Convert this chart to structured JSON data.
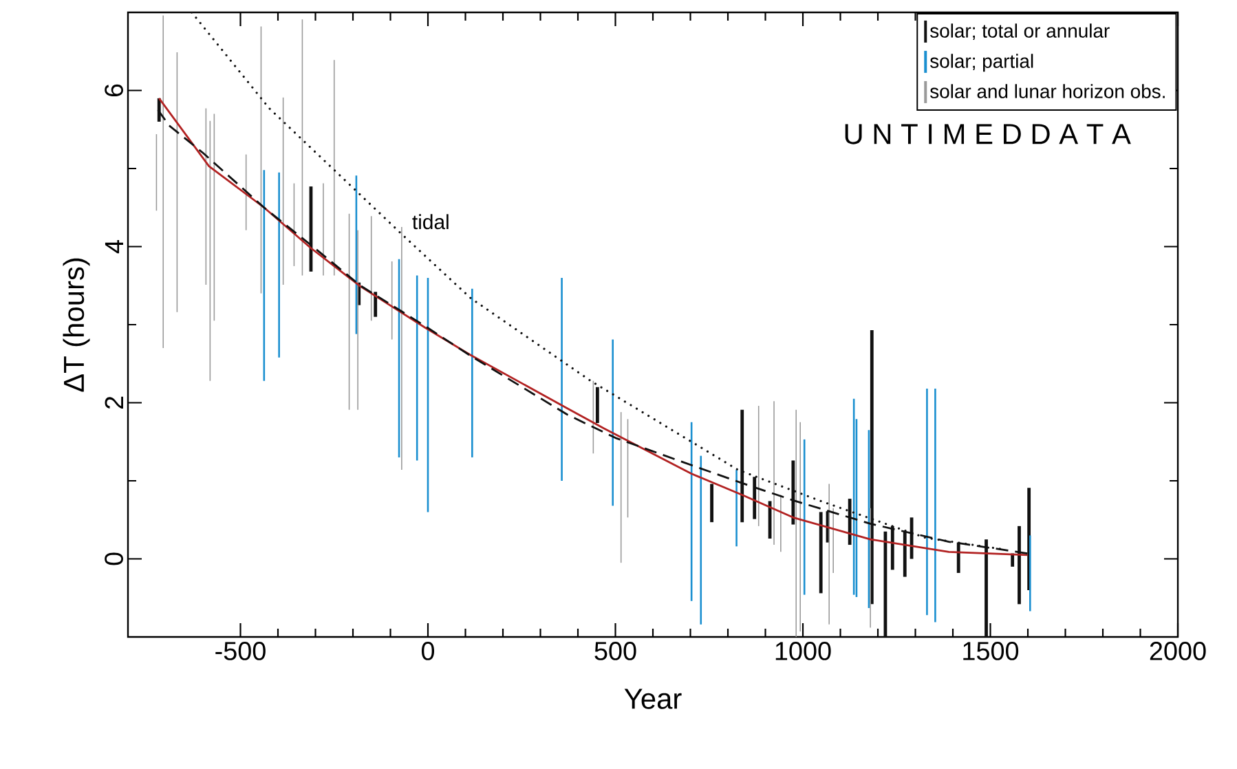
{
  "chart_data": {
    "type": "bar",
    "xlabel": "Year",
    "ylabel": "ΔT (hours)",
    "xlim": [
      -800,
      2000
    ],
    "ylim": [
      -1,
      7
    ],
    "xticks": [
      -500,
      0,
      500,
      1000,
      1500,
      2000
    ],
    "yticks": [
      0,
      2,
      4,
      6
    ],
    "legend": "top right",
    "annotations": [
      "U N T I M E D  D A T A"
    ],
    "series": [
      {
        "name": "solar; total or annular",
        "color": "#111111",
        "x": [
          -717,
          -312,
          -184,
          -140,
          452,
          757,
          838,
          871,
          912,
          974,
          1048,
          1066,
          1125,
          1184,
          1220,
          1239,
          1272,
          1290,
          1415,
          1489,
          1559,
          1577,
          1603
        ],
        "base": [
          5.6,
          3.68,
          3.25,
          3.1,
          1.74,
          0.47,
          0.47,
          0.51,
          0.26,
          0.44,
          -0.44,
          0.21,
          0.18,
          -0.58,
          -1.0,
          -0.14,
          -0.23,
          0.0,
          -0.18,
          -1.0,
          -0.1,
          -0.58,
          -0.4
        ],
        "values": [
          0.3,
          1.09,
          0.29,
          0.32,
          0.46,
          0.49,
          1.44,
          0.54,
          0.48,
          0.82,
          1.04,
          0.4,
          0.59,
          3.51,
          1.35,
          0.56,
          0.58,
          0.53,
          0.39,
          1.25,
          0.17,
          1.0,
          1.31
        ]
      },
      {
        "name": "solar; partial",
        "color": "#1a8fd0",
        "x": [
          -437,
          -397,
          -191,
          -77,
          -29,
          0,
          118,
          357,
          493,
          703,
          728,
          823,
          1004,
          1136,
          1143,
          1176,
          1331,
          1353,
          1606
        ],
        "base": [
          2.28,
          2.58,
          2.88,
          1.3,
          1.26,
          0.6,
          1.3,
          1.0,
          0.68,
          -0.54,
          -0.84,
          0.16,
          -0.46,
          -0.46,
          -0.49,
          -0.63,
          -0.72,
          -0.81,
          -0.67
        ],
        "values": [
          2.7,
          2.37,
          2.03,
          2.54,
          2.37,
          3.0,
          2.16,
          2.6,
          2.13,
          2.29,
          2.16,
          0.98,
          1.99,
          2.51,
          2.28,
          2.28,
          2.9,
          2.99,
          0.97
        ]
      },
      {
        "name": "solar and lunar horizon obs.",
        "color": "#9a9a9a",
        "x": [
          -724,
          -706,
          -669,
          -592,
          -581,
          -570,
          -485,
          -445,
          -386,
          -357,
          -335,
          -279,
          -250,
          -210,
          -187,
          -151,
          -96,
          -70,
          441,
          515,
          533,
          882,
          923,
          941,
          982,
          993,
          1070,
          1081,
          1180
        ],
        "base": [
          4.46,
          2.7,
          3.16,
          3.51,
          2.28,
          3.05,
          4.21,
          3.4,
          3.51,
          3.75,
          3.63,
          3.63,
          3.63,
          1.91,
          1.91,
          3.05,
          2.81,
          1.14,
          1.35,
          -0.05,
          0.53,
          0.42,
          0.18,
          0.09,
          -1.0,
          -0.93,
          -0.84,
          -0.18,
          -0.88
        ],
        "values": [
          0.98,
          4.26,
          3.33,
          2.26,
          3.33,
          2.65,
          0.97,
          3.42,
          2.4,
          1.06,
          3.28,
          1.18,
          2.76,
          2.51,
          2.3,
          1.34,
          1.0,
          3.11,
          0.93,
          1.93,
          1.26,
          1.54,
          1.84,
          0.73,
          2.91,
          2.68,
          1.8,
          0.83,
          1.53
        ]
      },
      {
        "color": "#b22222",
        "type": "line",
        "line_style": "solid",
        "x": [
          -717,
          -584,
          -437,
          -312,
          -180,
          -7,
          114,
          371,
          470,
          703,
          838,
          974,
          1180,
          1389,
          1599
        ],
        "values": [
          5.9,
          5.03,
          4.5,
          3.98,
          3.49,
          2.96,
          2.61,
          1.93,
          1.67,
          1.09,
          0.82,
          0.53,
          0.25,
          0.09,
          0.05
        ]
      },
      {
        "color": "#111111",
        "type": "line",
        "line_style": "dashed",
        "x": [
          -720,
          -690,
          -600,
          -437,
          -312,
          -180,
          -7,
          114,
          371,
          500,
          703,
          838,
          974,
          1180,
          1389,
          1599
        ],
        "values": [
          5.75,
          5.55,
          5.2,
          4.5,
          4.02,
          3.5,
          2.98,
          2.6,
          1.85,
          1.55,
          1.2,
          0.97,
          0.75,
          0.45,
          0.22,
          0.07
        ]
      },
      {
        "name": "tidal",
        "color": "#111111",
        "type": "line",
        "line_style": "dotted",
        "x": [
          -630,
          -423,
          -70,
          114,
          434,
          827,
          1048,
          1327,
          1537
        ],
        "values": [
          7.0,
          5.77,
          4.16,
          3.34,
          2.28,
          1.14,
          0.74,
          0.27,
          0.12
        ]
      }
    ]
  }
}
